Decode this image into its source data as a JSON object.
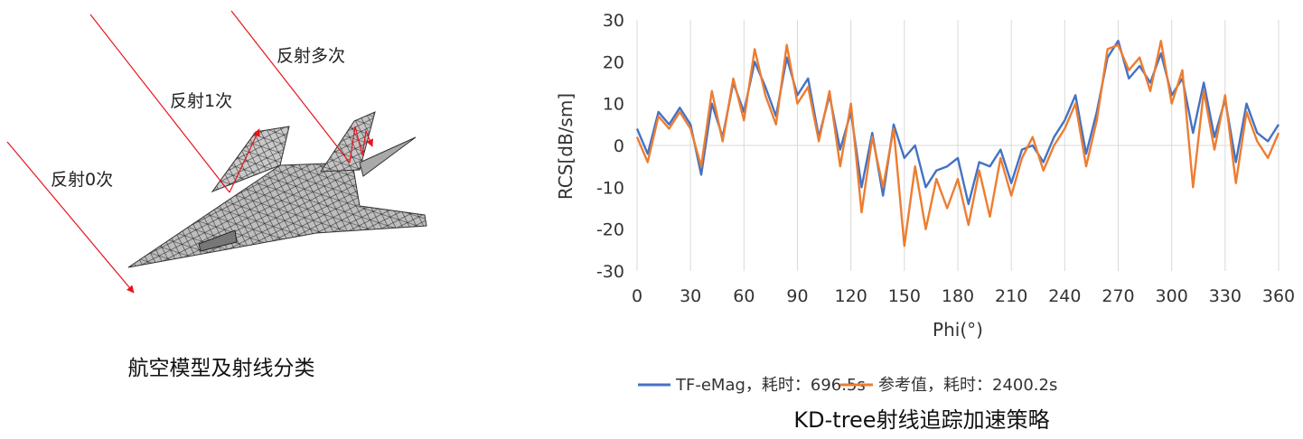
{
  "left": {
    "ray_labels": [
      "反射0次",
      "反射1次",
      "反射多次"
    ],
    "caption": "航空模型及射线分类",
    "colors": {
      "ray": "#e8131b",
      "airframe": "#b9b9b9",
      "mesh": "#2b2b2b"
    }
  },
  "right_caption": "KD-tree射线追踪加速策略",
  "chart_data": {
    "type": "line",
    "xlabel": "Phi(°)",
    "ylabel": "RCS[dB/sm]",
    "xlim": [
      0,
      360
    ],
    "ylim": [
      -30,
      30
    ],
    "xticks": [
      0,
      30,
      60,
      90,
      120,
      150,
      180,
      210,
      240,
      270,
      300,
      330,
      360
    ],
    "yticks": [
      30,
      20,
      10,
      0,
      -10,
      -20,
      -30
    ],
    "grid": "vertical",
    "legend_position": "bottom",
    "x": [
      0,
      6,
      12,
      18,
      24,
      30,
      36,
      42,
      48,
      54,
      60,
      66,
      72,
      78,
      84,
      90,
      96,
      102,
      108,
      114,
      120,
      126,
      132,
      138,
      144,
      150,
      156,
      162,
      168,
      174,
      180,
      186,
      192,
      198,
      204,
      210,
      216,
      222,
      228,
      234,
      240,
      246,
      252,
      258,
      264,
      270,
      276,
      282,
      288,
      294,
      300,
      306,
      312,
      318,
      324,
      330,
      336,
      342,
      348,
      354,
      360
    ],
    "series": [
      {
        "name": "TF-eMag，耗时：696.5s",
        "color": "#4472c4",
        "values": [
          4,
          -2,
          8,
          5,
          9,
          5,
          -7,
          10,
          2,
          15,
          8,
          20,
          14,
          7,
          21,
          12,
          16,
          2,
          12,
          -1,
          8,
          -10,
          3,
          -12,
          5,
          -3,
          0,
          -10,
          -6,
          -5,
          -3,
          -14,
          -4,
          -5,
          -1,
          -9,
          -1,
          0,
          -4,
          2,
          6,
          12,
          -2,
          8,
          21,
          25,
          16,
          19,
          15,
          22,
          12,
          16,
          3,
          15,
          2,
          11,
          -4,
          10,
          3,
          1,
          5
        ]
      },
      {
        "name": "参考值，耗时：2400.2s",
        "color": "#ed7d31",
        "values": [
          2,
          -4,
          7,
          4,
          8,
          4,
          -5,
          13,
          1,
          16,
          6,
          23,
          12,
          5,
          24,
          10,
          14,
          1,
          13,
          -5,
          10,
          -16,
          2,
          -10,
          4,
          -24,
          -5,
          -20,
          -8,
          -15,
          -8,
          -19,
          -6,
          -17,
          -3,
          -12,
          -3,
          2,
          -6,
          0,
          4,
          10,
          -5,
          6,
          23,
          24,
          18,
          21,
          13,
          25,
          10,
          18,
          -10,
          13,
          -1,
          12,
          -9,
          8,
          1,
          -3,
          3
        ]
      }
    ]
  }
}
